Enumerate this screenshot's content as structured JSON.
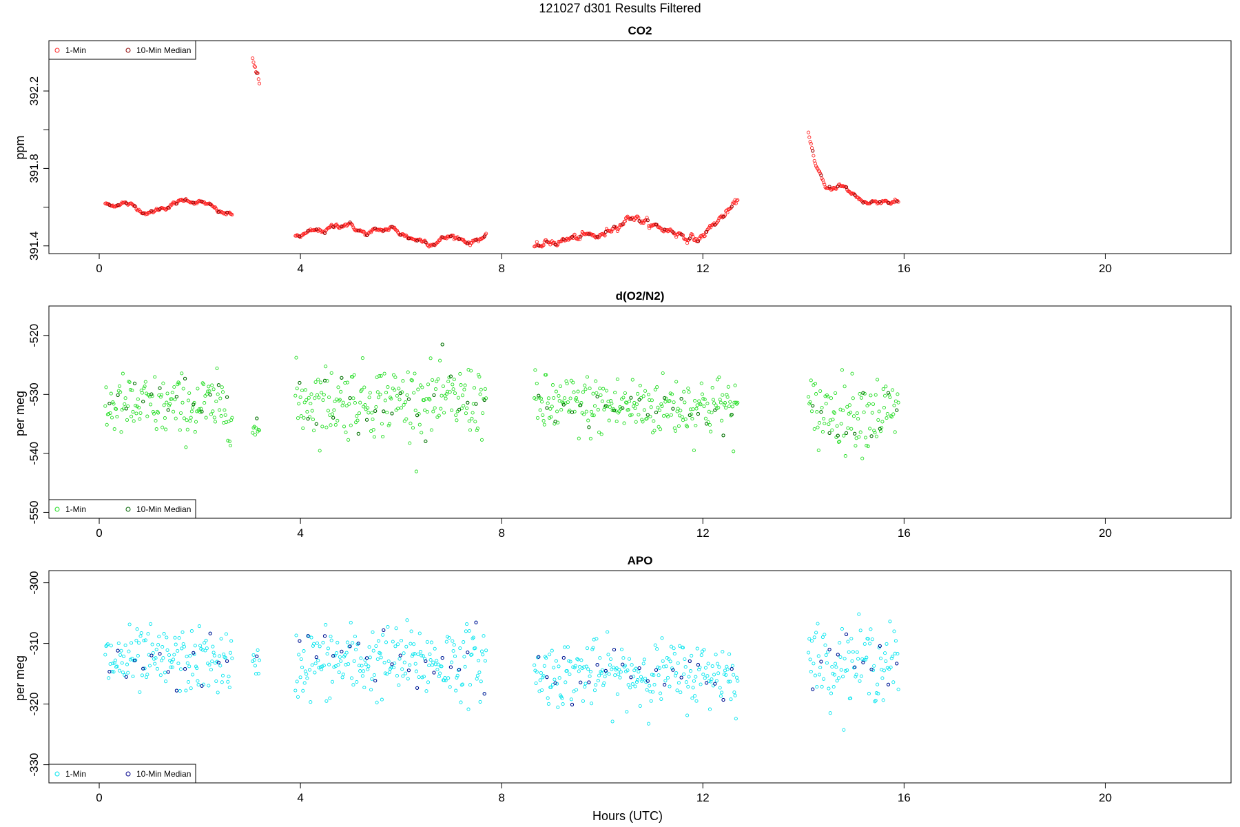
{
  "figure": {
    "title": "121027   d301   Results Filtered",
    "xlabel": "Hours (UTC)"
  },
  "chart_data": [
    {
      "type": "scatter",
      "title": "CO2",
      "ylabel": "ppm",
      "xlim": [
        -1,
        22.5
      ],
      "ylim": [
        391.36,
        392.46
      ],
      "xticks": [
        0,
        4,
        8,
        12,
        16,
        20
      ],
      "yticks": [
        391.4,
        391.6,
        391.8,
        392.0,
        392.2
      ],
      "ytick_labels": [
        "391.4",
        "",
        "391.8",
        "",
        "392.2"
      ],
      "legend": [
        "1-Min",
        "10-Min Median"
      ],
      "legend_position": "top-left",
      "colors": {
        "one_min": "#ff2020",
        "median": "#8b0000"
      },
      "segments": [
        {
          "x0": 0.12,
          "x1": 2.65,
          "step": 0.0167,
          "base": [
            [
              0.12,
              391.62
            ],
            [
              0.25,
              391.6
            ],
            [
              0.45,
              391.63
            ],
            [
              0.7,
              391.6
            ],
            [
              1.0,
              391.57
            ],
            [
              1.3,
              391.6
            ],
            [
              1.75,
              391.64
            ],
            [
              2.1,
              391.62
            ],
            [
              2.4,
              391.57
            ],
            [
              2.65,
              391.56
            ]
          ],
          "noise": 0.008
        },
        {
          "x0": 3.05,
          "x1": 3.2,
          "step": 0.0167,
          "base": [
            [
              3.05,
              392.38
            ],
            [
              3.2,
              392.2
            ]
          ],
          "noise": 0.02
        },
        {
          "x0": 3.9,
          "x1": 7.7,
          "step": 0.0167,
          "base": [
            [
              3.9,
              391.45
            ],
            [
              4.5,
              391.48
            ],
            [
              4.9,
              391.52
            ],
            [
              5.3,
              391.46
            ],
            [
              5.8,
              391.49
            ],
            [
              6.2,
              391.44
            ],
            [
              6.6,
              391.42
            ],
            [
              7.0,
              391.45
            ],
            [
              7.4,
              391.42
            ],
            [
              7.7,
              391.46
            ]
          ],
          "noise": 0.01
        },
        {
          "x0": 8.65,
          "x1": 12.7,
          "step": 0.0167,
          "base": [
            [
              8.65,
              391.38
            ],
            [
              9.0,
              391.42
            ],
            [
              9.5,
              391.44
            ],
            [
              10.0,
              391.45
            ],
            [
              10.3,
              391.52
            ],
            [
              10.6,
              391.56
            ],
            [
              11.0,
              391.5
            ],
            [
              11.5,
              391.47
            ],
            [
              11.9,
              391.43
            ],
            [
              12.3,
              391.53
            ],
            [
              12.7,
              391.62
            ]
          ],
          "noise": 0.014
        },
        {
          "x0": 14.1,
          "x1": 15.9,
          "step": 0.0167,
          "base": [
            [
              14.1,
              391.99
            ],
            [
              14.25,
              391.82
            ],
            [
              14.45,
              391.68
            ],
            [
              14.7,
              391.72
            ],
            [
              14.95,
              391.67
            ],
            [
              15.3,
              391.62
            ],
            [
              15.6,
              391.64
            ],
            [
              15.9,
              391.62
            ]
          ],
          "noise": 0.01
        }
      ]
    },
    {
      "type": "scatter",
      "title": "d(O2/N2)",
      "ylabel": "per meg",
      "xlim": [
        -1,
        22.5
      ],
      "ylim": [
        -551,
        -515
      ],
      "xticks": [
        0,
        4,
        8,
        12,
        16,
        20
      ],
      "yticks": [
        -550,
        -540,
        -530,
        -520
      ],
      "ytick_labels": [
        "-550",
        "-540",
        "-530",
        "-520"
      ],
      "legend": [
        "1-Min",
        "10-Min Median"
      ],
      "legend_position": "bottom-left",
      "colors": {
        "one_min": "#22dd22",
        "median": "#006400"
      },
      "segments": [
        {
          "x0": 0.12,
          "x1": 2.65,
          "step": 0.0167,
          "mean": -532,
          "noise": 3.5
        },
        {
          "x0": 3.05,
          "x1": 3.2,
          "step": 0.0167,
          "mean": -536,
          "noise": 2.0
        },
        {
          "x0": 3.9,
          "x1": 7.7,
          "step": 0.0167,
          "mean": -531,
          "noise": 4.0
        },
        {
          "x0": 8.65,
          "x1": 12.7,
          "step": 0.0167,
          "mean": -532,
          "noise": 3.5
        },
        {
          "x0": 14.1,
          "x1": 15.9,
          "step": 0.0167,
          "mean": -533,
          "noise": 4.0
        }
      ]
    },
    {
      "type": "scatter",
      "title": "APO",
      "ylabel": "per meg",
      "xlim": [
        -1,
        22.5
      ],
      "ylim": [
        -333,
        -298
      ],
      "xticks": [
        0,
        4,
        8,
        12,
        16,
        20
      ],
      "yticks": [
        -330,
        -320,
        -310,
        -300
      ],
      "ytick_labels": [
        "-330",
        "-320",
        "-310",
        "-300"
      ],
      "legend": [
        "1-Min",
        "10-Min Median"
      ],
      "legend_position": "bottom-left",
      "colors": {
        "one_min": "#00e5ee",
        "median": "#00008b"
      },
      "segments": [
        {
          "x0": 0.12,
          "x1": 2.65,
          "step": 0.0167,
          "mean": -313,
          "noise": 3.5
        },
        {
          "x0": 3.05,
          "x1": 3.2,
          "step": 0.0167,
          "mean": -314,
          "noise": 2.0
        },
        {
          "x0": 3.9,
          "x1": 7.7,
          "step": 0.0167,
          "mean": -313,
          "noise": 4.0
        },
        {
          "x0": 8.65,
          "x1": 12.7,
          "step": 0.0167,
          "mean": -315,
          "noise": 3.5
        },
        {
          "x0": 14.1,
          "x1": 15.9,
          "step": 0.0167,
          "mean": -313,
          "noise": 4.0
        }
      ]
    }
  ]
}
